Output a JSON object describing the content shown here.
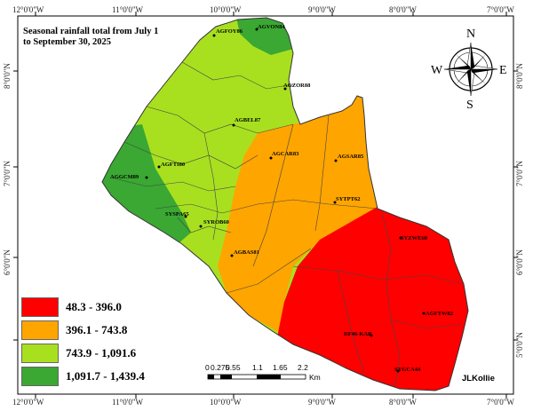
{
  "title": "Seasonal rainfall total from July 1 to September 30, 2025",
  "title_lines": [
    "Seasonal rainfall total from July 1",
    "to September 30, 2025"
  ],
  "lon_labels": [
    "12°0'0\"W",
    "11°0'0\"W",
    "10°0'0\"W",
    "9°0'0\"W",
    "8°0'0\"W",
    "7°0'0\"W"
  ],
  "lat_labels": [
    "8°0'0\"N",
    "7°0'0\"N",
    "6°0'0\"N",
    "5°0'0\"N"
  ],
  "legend": [
    {
      "label": "48.3 - 396.0",
      "color": "#ff0000"
    },
    {
      "label": "396.1 - 743.8",
      "color": "#ffa500"
    },
    {
      "label": "743.9 - 1,091.6",
      "color": "#a8e020"
    },
    {
      "label": "1,091.7 - 1,439.4",
      "color": "#3aa832"
    }
  ],
  "scale": {
    "ticks": [
      "0",
      "0.275",
      "0.55",
      "1.1",
      "1.65",
      "2.2"
    ],
    "unit": "Km"
  },
  "compass": {
    "n": "N",
    "s": "S",
    "e": "E",
    "w": "W"
  },
  "author": "JLKollie",
  "stations": [
    "AGFOY86",
    "AGVON84",
    "AGZOR88",
    "AGBEL87",
    "AGCAR83",
    "AGSAR85",
    "AGGCM89",
    "AGFTI80",
    "SYSPA65",
    "SYROB60",
    "SYTPT62",
    "AGBAS81",
    "SYZWE60",
    "AGFTW82",
    "RF46-KAB",
    "SYGCA44"
  ]
}
